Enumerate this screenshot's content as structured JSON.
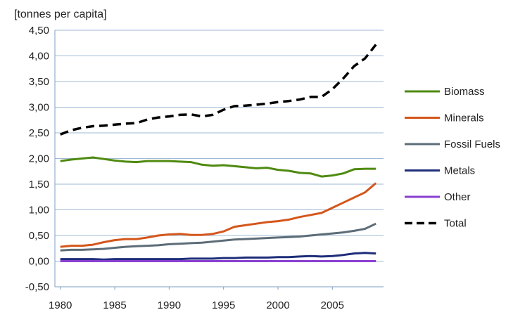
{
  "chart_data": {
    "type": "line",
    "title": "",
    "xlabel": "",
    "ylabel": "[tonnes per capita]",
    "x": [
      1980,
      1981,
      1982,
      1983,
      1984,
      1985,
      1986,
      1987,
      1988,
      1989,
      1990,
      1991,
      1992,
      1993,
      1994,
      1995,
      1996,
      1997,
      1998,
      1999,
      2000,
      2001,
      2002,
      2003,
      2004,
      2005,
      2006,
      2007,
      2008,
      2009
    ],
    "xticks": [
      "1980",
      "1985",
      "1990",
      "1995",
      "2000",
      "2005"
    ],
    "xtick_values": [
      1980,
      1985,
      1990,
      1995,
      2000,
      2005
    ],
    "xlim": [
      1979.5,
      2009.7
    ],
    "ylim": [
      -0.5,
      4.5
    ],
    "yticks": [
      "-0,50",
      "0,00",
      "0,50",
      "1,00",
      "1,50",
      "2,00",
      "2,50",
      "3,00",
      "3,50",
      "4,00",
      "4,50"
    ],
    "ytick_values": [
      -0.5,
      0,
      0.5,
      1,
      1.5,
      2,
      2.5,
      3,
      3.5,
      4,
      4.5
    ],
    "grid": true,
    "legend_position": "right",
    "series": [
      {
        "name": "Biomass",
        "color": "#4f8a10",
        "dash": "solid",
        "values": [
          1.95,
          1.98,
          2.0,
          2.02,
          1.99,
          1.96,
          1.94,
          1.93,
          1.95,
          1.95,
          1.95,
          1.94,
          1.93,
          1.88,
          1.86,
          1.87,
          1.85,
          1.83,
          1.81,
          1.82,
          1.78,
          1.76,
          1.72,
          1.71,
          1.65,
          1.67,
          1.71,
          1.79,
          1.8,
          1.8
        ]
      },
      {
        "name": "Minerals",
        "color": "#d4561b",
        "dash": "solid",
        "values": [
          0.28,
          0.3,
          0.3,
          0.32,
          0.37,
          0.41,
          0.43,
          0.43,
          0.46,
          0.5,
          0.52,
          0.53,
          0.51,
          0.51,
          0.53,
          0.58,
          0.67,
          0.7,
          0.73,
          0.76,
          0.78,
          0.81,
          0.86,
          0.9,
          0.94,
          1.04,
          1.14,
          1.24,
          1.34,
          1.52
        ]
      },
      {
        "name": "Fossil Fuels",
        "color": "#5d6d78",
        "dash": "solid",
        "values": [
          0.21,
          0.22,
          0.22,
          0.23,
          0.24,
          0.26,
          0.28,
          0.29,
          0.3,
          0.31,
          0.33,
          0.34,
          0.35,
          0.36,
          0.38,
          0.4,
          0.42,
          0.43,
          0.44,
          0.45,
          0.46,
          0.47,
          0.48,
          0.5,
          0.52,
          0.54,
          0.56,
          0.59,
          0.63,
          0.73
        ]
      },
      {
        "name": "Metals",
        "color": "#1e2d7a",
        "dash": "solid",
        "values": [
          0.04,
          0.04,
          0.04,
          0.04,
          0.03,
          0.04,
          0.04,
          0.04,
          0.04,
          0.04,
          0.04,
          0.04,
          0.05,
          0.05,
          0.05,
          0.06,
          0.06,
          0.07,
          0.07,
          0.07,
          0.08,
          0.08,
          0.09,
          0.1,
          0.09,
          0.1,
          0.12,
          0.15,
          0.16,
          0.15
        ]
      },
      {
        "name": "Other",
        "color": "#8a3fd1",
        "dash": "solid",
        "values": [
          0.0,
          0.0,
          0.0,
          0.0,
          0.0,
          0.0,
          0.0,
          0.0,
          0.0,
          0.0,
          0.0,
          0.0,
          0.0,
          0.0,
          0.0,
          0.0,
          0.0,
          0.0,
          0.0,
          0.0,
          0.0,
          0.0,
          0.0,
          0.0,
          0.0,
          0.0,
          0.0,
          0.0,
          0.0,
          0.0
        ]
      },
      {
        "name": "Total",
        "color": "#000000",
        "dash": "dashed",
        "values": [
          2.47,
          2.55,
          2.6,
          2.63,
          2.64,
          2.66,
          2.68,
          2.69,
          2.76,
          2.8,
          2.82,
          2.85,
          2.86,
          2.82,
          2.85,
          2.95,
          3.02,
          3.03,
          3.05,
          3.07,
          3.1,
          3.12,
          3.15,
          3.2,
          3.2,
          3.35,
          3.56,
          3.8,
          3.95,
          4.22
        ]
      }
    ]
  }
}
